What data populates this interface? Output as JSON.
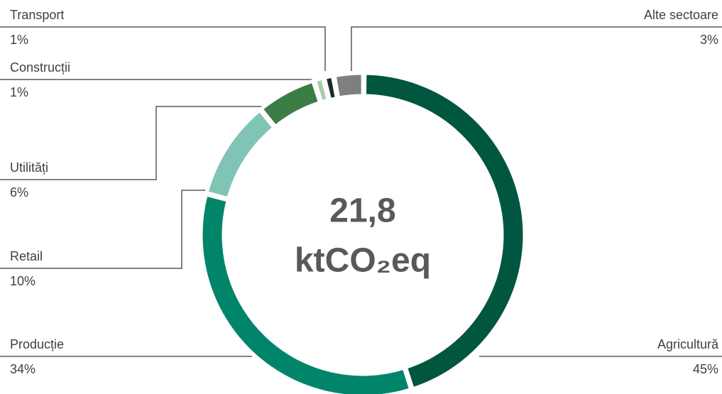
{
  "chart_data": {
    "type": "donut",
    "categories": [
      "Agricultură",
      "Producție",
      "Retail",
      "Utilități",
      "Construcții",
      "Transport",
      "Alte sectoare"
    ],
    "values": [
      45,
      34,
      10,
      6,
      1,
      1,
      3
    ],
    "value_labels": [
      "45%",
      "34%",
      "10%",
      "6%",
      "1%",
      "1%",
      "3%"
    ],
    "colors": [
      "#00563f",
      "#00856a",
      "#80c4b5",
      "#3b7d45",
      "#a3cfa8",
      "#1e2b2b",
      "#7f7f7f"
    ],
    "center_value": "21,8",
    "center_unit": "ktCO₂eq"
  }
}
